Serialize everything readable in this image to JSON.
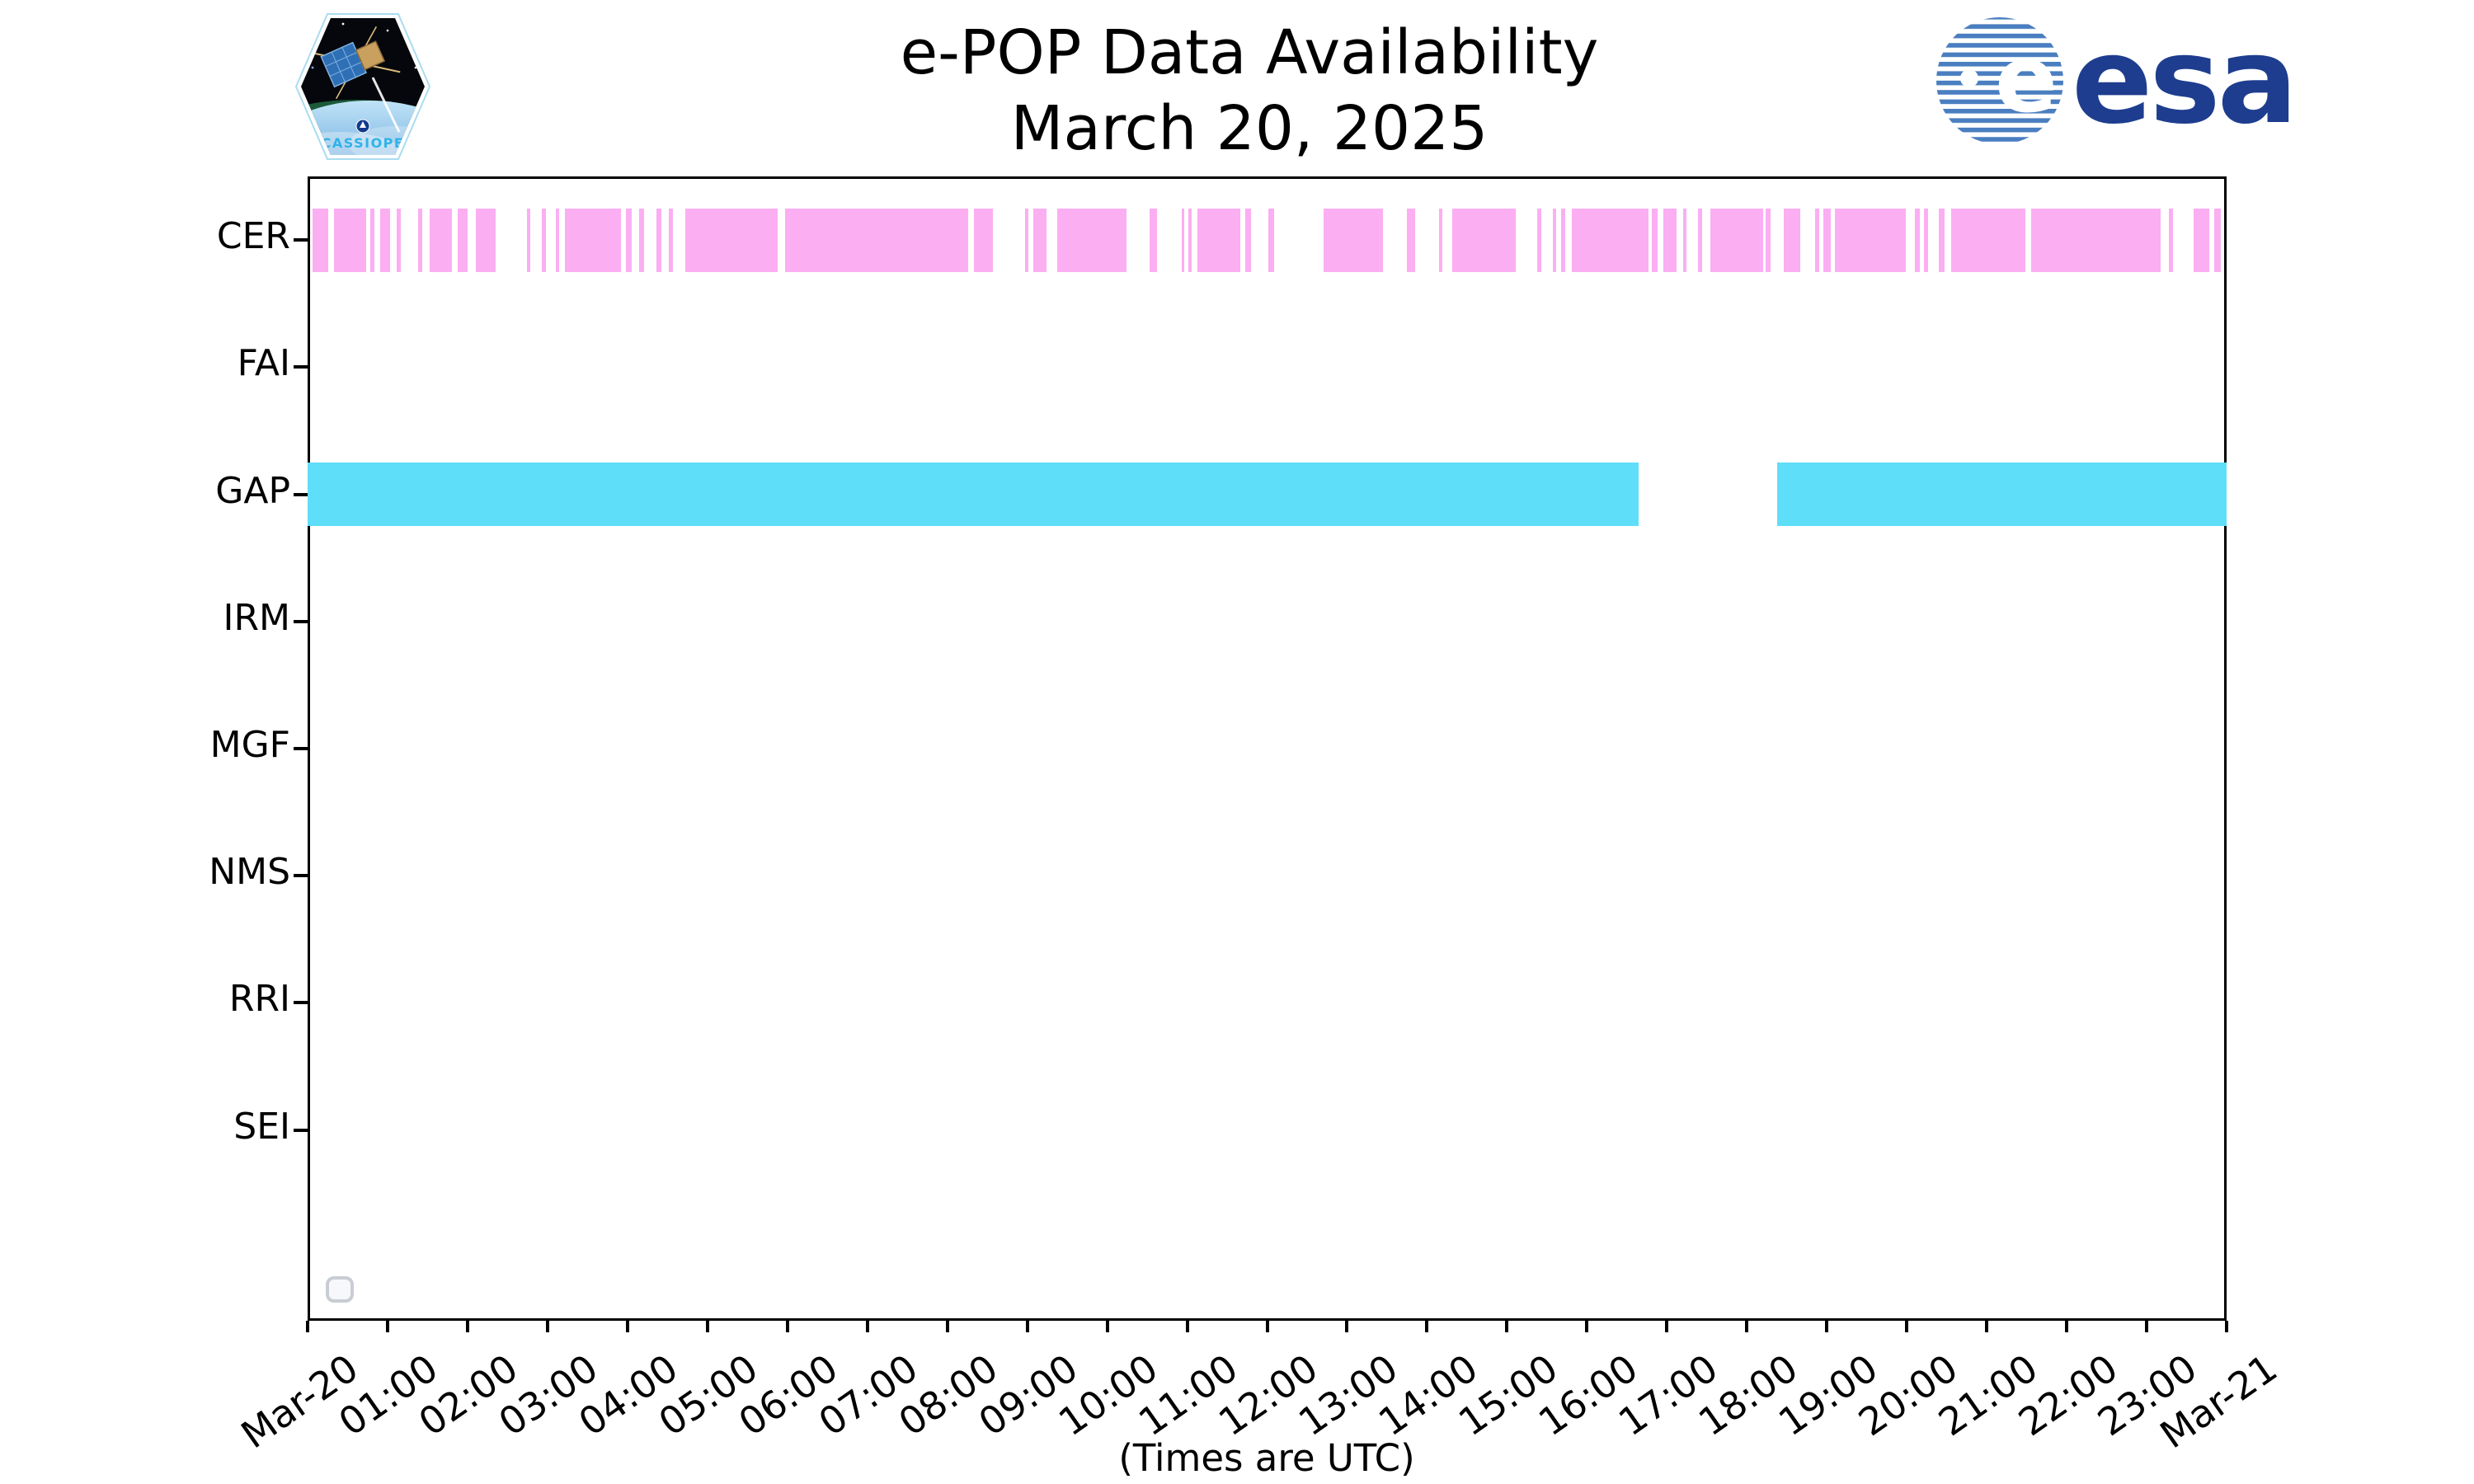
{
  "header": {
    "title_line1": "e-POP Data Availability",
    "title_line2": "March 20, 2025",
    "cassiope_patch_label": "CASSIOPE",
    "esa_logo_text": "esa"
  },
  "colors": {
    "cer_pink": "#fbaef2",
    "gap_cyan": "#5fdef9",
    "axis_black": "#000000",
    "esa_navy": "#1e3d8f",
    "esa_stripe_blue": "#4a7ec0",
    "legend_border_gray": "#c9cdd3"
  },
  "chart_data": {
    "type": "timeline",
    "title": "e-POP Data Availability",
    "subtitle": "March 20, 2025",
    "xlabel": "(Times are UTC)",
    "x_axis": {
      "range_hours": [
        0,
        24
      ],
      "tick_interval_hours": 1,
      "tick_labels": [
        "Mar-20",
        "01:00",
        "02:00",
        "03:00",
        "04:00",
        "05:00",
        "06:00",
        "07:00",
        "08:00",
        "09:00",
        "10:00",
        "11:00",
        "12:00",
        "13:00",
        "14:00",
        "15:00",
        "16:00",
        "17:00",
        "18:00",
        "19:00",
        "20:00",
        "21:00",
        "22:00",
        "23:00",
        "Mar-21"
      ],
      "label_rotation_deg": -35
    },
    "rows": [
      "CER",
      "FAI",
      "GAP",
      "IRM",
      "MGF",
      "NMS",
      "RRI",
      "SEI"
    ],
    "grid": false,
    "legend": {
      "visible": true,
      "entries": []
    },
    "series": [
      {
        "name": "CER",
        "color": "#fbaef2",
        "intervals_hours": [
          [
            0.06,
            0.26
          ],
          [
            0.33,
            0.73
          ],
          [
            0.78,
            0.84
          ],
          [
            0.91,
            1.03
          ],
          [
            1.11,
            1.17
          ],
          [
            1.38,
            1.43
          ],
          [
            1.53,
            1.81
          ],
          [
            1.88,
            2.0
          ],
          [
            2.1,
            2.35
          ],
          [
            2.74,
            2.78
          ],
          [
            2.93,
            2.98
          ],
          [
            3.1,
            3.15
          ],
          [
            3.22,
            3.92
          ],
          [
            3.98,
            4.05
          ],
          [
            4.15,
            4.21
          ],
          [
            4.36,
            4.42
          ],
          [
            4.52,
            4.57
          ],
          [
            4.72,
            5.88
          ],
          [
            5.97,
            8.26
          ],
          [
            8.33,
            8.57
          ],
          [
            8.97,
            9.01
          ],
          [
            9.08,
            9.24
          ],
          [
            9.38,
            10.24
          ],
          [
            10.53,
            10.62
          ],
          [
            10.93,
            10.96
          ],
          [
            11.02,
            11.06
          ],
          [
            11.13,
            11.66
          ],
          [
            11.73,
            11.8
          ],
          [
            12.02,
            12.09
          ],
          [
            12.71,
            13.45
          ],
          [
            13.75,
            13.85
          ],
          [
            14.15,
            14.19
          ],
          [
            14.32,
            15.11
          ],
          [
            15.38,
            15.43
          ],
          [
            15.57,
            15.62
          ],
          [
            15.68,
            15.73
          ],
          [
            15.81,
            16.77
          ],
          [
            16.81,
            16.88
          ],
          [
            16.96,
            17.12
          ],
          [
            17.2,
            17.24
          ],
          [
            17.39,
            17.44
          ],
          [
            17.54,
            18.2
          ],
          [
            18.23,
            18.3
          ],
          [
            18.46,
            18.67
          ],
          [
            18.85,
            18.9
          ],
          [
            18.96,
            19.05
          ],
          [
            19.1,
            19.99
          ],
          [
            20.1,
            20.16
          ],
          [
            20.22,
            20.27
          ],
          [
            20.4,
            20.47
          ],
          [
            20.56,
            21.48
          ],
          [
            21.56,
            23.18
          ],
          [
            23.28,
            23.33
          ],
          [
            23.59,
            23.78
          ],
          [
            23.85,
            23.93
          ]
        ]
      },
      {
        "name": "FAI",
        "color": "#fbaef2",
        "intervals_hours": []
      },
      {
        "name": "GAP",
        "color": "#5fdef9",
        "intervals_hours": [
          [
            0.0,
            16.65
          ],
          [
            18.38,
            24.0
          ]
        ]
      },
      {
        "name": "IRM",
        "color": "#5fdef9",
        "intervals_hours": []
      },
      {
        "name": "MGF",
        "color": "#fbaef2",
        "intervals_hours": []
      },
      {
        "name": "NMS",
        "color": "#fbaef2",
        "intervals_hours": []
      },
      {
        "name": "RRI",
        "color": "#5fdef9",
        "intervals_hours": []
      },
      {
        "name": "SEI",
        "color": "#fbaef2",
        "intervals_hours": []
      }
    ]
  }
}
